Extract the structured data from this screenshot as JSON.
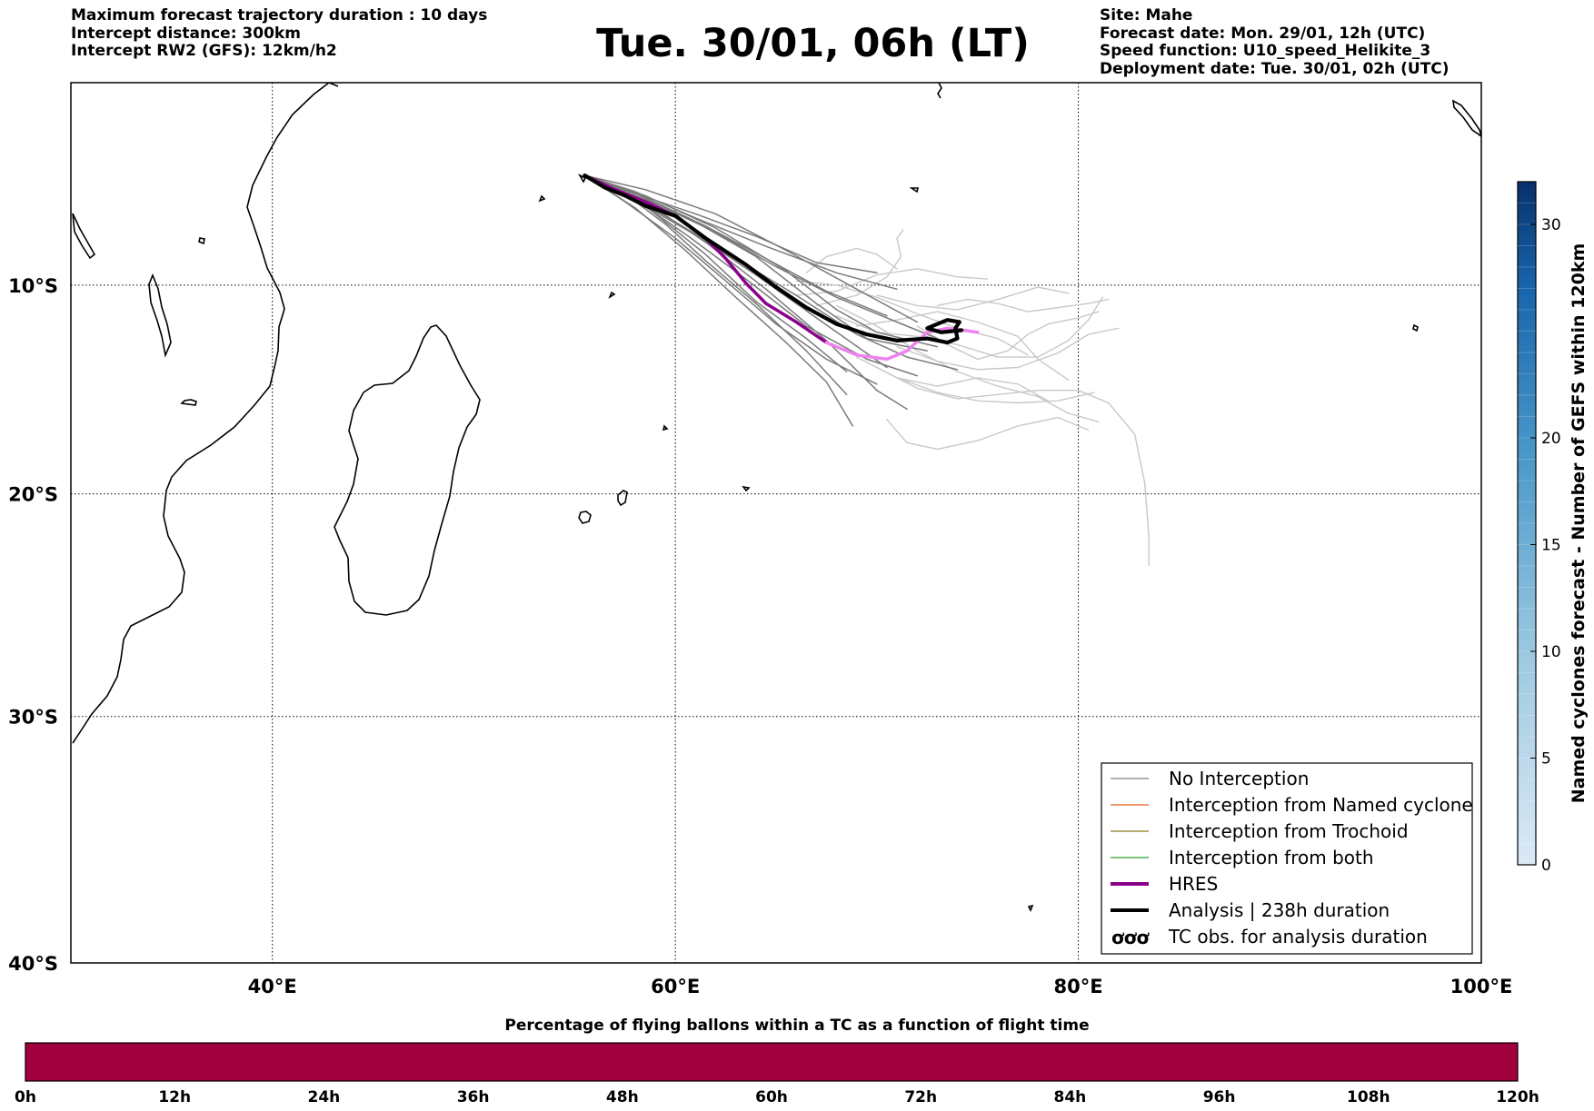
{
  "header": {
    "left": [
      "Maximum forecast trajectory duration : 10 days",
      "Intercept distance: 300km",
      "Intercept RW2 (GFS):  12km/h2"
    ],
    "title": "Tue. 30/01, 06h (LT)",
    "right": [
      "Site: Mahe",
      "Forecast date: Mon. 29/01, 12h (UTC)",
      "Speed function: U10_speed_Helikite_3",
      "Deployment date: Tue. 30/01, 02h (UTC)"
    ]
  },
  "map": {
    "lon_range": [
      30,
      100
    ],
    "lat_range": [
      -40,
      0
    ],
    "lon_ticks": [
      {
        "value": 40,
        "label": "40°E"
      },
      {
        "value": 60,
        "label": "60°E"
      },
      {
        "value": 80,
        "label": "80°E"
      },
      {
        "value": 100,
        "label": "100°E"
      }
    ],
    "lat_ticks": [
      {
        "value": -10,
        "label": "10°S"
      },
      {
        "value": -20,
        "label": "20°S"
      },
      {
        "value": -30,
        "label": "30°S"
      },
      {
        "value": -40,
        "label": "40°S"
      }
    ],
    "grid": "dotted",
    "launch_site": "Mahe"
  },
  "legend": {
    "position": "bottom-right",
    "items": [
      {
        "label": "No Interception",
        "color": "#808080",
        "style": "thin"
      },
      {
        "label": "Interception from Named cyclone",
        "color": "#e8601c",
        "style": "thin"
      },
      {
        "label": "Interception from Trochoid",
        "color": "#8a7a1e",
        "style": "thin"
      },
      {
        "label": "Interception from both",
        "color": "#2ca02c",
        "style": "thin"
      },
      {
        "label": "HRES",
        "color": "#8b008b",
        "style": "thick"
      },
      {
        "label": "Analysis | 238h duration",
        "color": "#000000",
        "style": "thick"
      },
      {
        "label": "TC obs. for analysis duration",
        "color": "#000000",
        "style": "symbol"
      }
    ]
  },
  "right_colorbar": {
    "label": "Named cyclones forecast - Number of GEFS within 120km",
    "range": [
      0,
      32
    ],
    "ticks": [
      0,
      5,
      10,
      15,
      20,
      30
    ],
    "color_low": "#dbe9f6",
    "color_high": "#08306b"
  },
  "bottom_colorbar": {
    "title": "Percentage of flying ballons within a TC as a function of flight time",
    "color": "#a0003c",
    "ticks": [
      "0h",
      "12h",
      "24h",
      "36h",
      "48h",
      "60h",
      "72h",
      "84h",
      "96h",
      "108h",
      "120h"
    ]
  },
  "trajectories": {
    "analysis": {
      "label": "Analysis",
      "color": "#000000",
      "points": [
        [
          55.5,
          -4.6
        ],
        [
          56.5,
          -5.2
        ],
        [
          57.5,
          -5.6
        ],
        [
          58.5,
          -6.1
        ],
        [
          60,
          -6.6
        ],
        [
          61.5,
          -7.7
        ],
        [
          63.5,
          -9
        ],
        [
          65,
          -10.1
        ],
        [
          66.5,
          -11.1
        ],
        [
          68,
          -11.9
        ],
        [
          69.5,
          -12.4
        ],
        [
          71,
          -12.7
        ],
        [
          72.5,
          -12.6
        ],
        [
          73.5,
          -12.8
        ],
        [
          74,
          -12.6
        ],
        [
          73.9,
          -12.1
        ],
        [
          74.1,
          -11.8
        ],
        [
          73.5,
          -11.7
        ],
        [
          73,
          -11.9
        ],
        [
          72.5,
          -12.1
        ],
        [
          73.2,
          -12.3
        ],
        [
          74.2,
          -12.2
        ]
      ]
    },
    "hres": {
      "label": "HRES",
      "color": "#8b008b",
      "highlight": "#ee82ee",
      "points": [
        [
          55.5,
          -4.6
        ],
        [
          57,
          -5.3
        ],
        [
          58.5,
          -5.9
        ],
        [
          60,
          -6.6
        ],
        [
          61.5,
          -7.7
        ],
        [
          62.5,
          -8.7
        ],
        [
          63.5,
          -9.9
        ],
        [
          64.5,
          -10.9
        ],
        [
          66,
          -11.8
        ],
        [
          67.5,
          -12.8
        ],
        [
          69,
          -13.4
        ],
        [
          70.5,
          -13.6
        ],
        [
          71.5,
          -13.2
        ],
        [
          72.5,
          -12.3
        ],
        [
          73.5,
          -12.1
        ],
        [
          74.3,
          -12.2
        ],
        [
          75,
          -12.3
        ]
      ]
    },
    "ensemble_gefs_dark": [
      [
        [
          55.5,
          -4.6
        ],
        [
          58,
          -5.7
        ],
        [
          61,
          -7.5
        ],
        [
          64,
          -9.5
        ],
        [
          67,
          -11.6
        ],
        [
          70.5,
          -14
        ]
      ],
      [
        [
          55.5,
          -4.6
        ],
        [
          58.5,
          -5.9
        ],
        [
          61.5,
          -7.9
        ],
        [
          64.5,
          -10.2
        ],
        [
          67.5,
          -12.7
        ],
        [
          70,
          -15.1
        ],
        [
          71.5,
          -16
        ]
      ],
      [
        [
          55.5,
          -4.6
        ],
        [
          59,
          -6
        ],
        [
          62,
          -7.4
        ],
        [
          65,
          -9.1
        ],
        [
          68,
          -10.6
        ],
        [
          71,
          -11.8
        ],
        [
          73,
          -12.6
        ]
      ],
      [
        [
          55.5,
          -4.6
        ],
        [
          58.5,
          -5.3
        ],
        [
          62,
          -6.5
        ],
        [
          65.5,
          -8.3
        ],
        [
          69,
          -10.2
        ],
        [
          72,
          -11.8
        ]
      ],
      [
        [
          55.5,
          -4.6
        ],
        [
          58,
          -6.2
        ],
        [
          60.5,
          -8.3
        ],
        [
          63,
          -10.6
        ],
        [
          65.5,
          -12.8
        ],
        [
          67.5,
          -14.7
        ],
        [
          68.8,
          -16.8
        ]
      ],
      [
        [
          55.5,
          -4.6
        ],
        [
          58.5,
          -5.7
        ],
        [
          61.5,
          -7.1
        ],
        [
          64.5,
          -8.7
        ],
        [
          67.5,
          -10.3
        ],
        [
          70.5,
          -11.5
        ]
      ],
      [
        [
          55.5,
          -4.6
        ],
        [
          58,
          -5.8
        ],
        [
          60.5,
          -7.5
        ],
        [
          63.5,
          -9.7
        ],
        [
          66.5,
          -12
        ],
        [
          69.5,
          -13.6
        ],
        [
          72,
          -14.4
        ]
      ],
      [
        [
          55.5,
          -4.6
        ],
        [
          58,
          -5.5
        ],
        [
          61,
          -6.9
        ],
        [
          64,
          -8.6
        ],
        [
          67,
          -10.9
        ],
        [
          69.5,
          -12.6
        ],
        [
          72.5,
          -13.2
        ]
      ],
      [
        [
          55.5,
          -4.6
        ],
        [
          57.5,
          -5.9
        ],
        [
          60,
          -7.7
        ],
        [
          62.5,
          -9.8
        ],
        [
          65,
          -11.9
        ],
        [
          67.5,
          -13.6
        ],
        [
          70,
          -14.8
        ]
      ],
      [
        [
          55.5,
          -4.6
        ],
        [
          58.5,
          -5.6
        ],
        [
          62,
          -7.2
        ],
        [
          65.5,
          -9.3
        ],
        [
          68,
          -11.2
        ],
        [
          70,
          -12.3
        ],
        [
          73,
          -13
        ]
      ],
      [
        [
          55.5,
          -4.6
        ],
        [
          57.5,
          -5.5
        ],
        [
          59.5,
          -7
        ],
        [
          61.5,
          -8.8
        ],
        [
          64,
          -10.9
        ],
        [
          66.5,
          -13.2
        ],
        [
          68.5,
          -15.3
        ]
      ],
      [
        [
          55.5,
          -4.6
        ],
        [
          59,
          -6.4
        ],
        [
          62.5,
          -8.4
        ],
        [
          66,
          -10.5
        ],
        [
          69,
          -12.4
        ],
        [
          71.5,
          -13.5
        ],
        [
          74,
          -14.1
        ]
      ],
      [
        [
          55.5,
          -4.6
        ],
        [
          58,
          -5.5
        ],
        [
          61,
          -6.5
        ],
        [
          64,
          -7.6
        ],
        [
          67,
          -8.9
        ],
        [
          70,
          -9.4
        ]
      ],
      [
        [
          55.5,
          -4.6
        ],
        [
          58.5,
          -6.1
        ],
        [
          61.5,
          -8.5
        ],
        [
          64,
          -10.8
        ],
        [
          66.5,
          -12.6
        ],
        [
          68.5,
          -14.2
        ]
      ],
      [
        [
          55.5,
          -4.6
        ],
        [
          58,
          -5.4
        ],
        [
          61,
          -6.7
        ],
        [
          64.5,
          -8.1
        ],
        [
          68,
          -9.4
        ],
        [
          71,
          -10.2
        ]
      ]
    ],
    "ensemble_gefs_light": [
      [
        [
          66,
          -9.8
        ],
        [
          68,
          -10
        ],
        [
          70,
          -10.6
        ],
        [
          72,
          -11.4
        ],
        [
          74,
          -12.1
        ],
        [
          76,
          -12.6
        ],
        [
          77.5,
          -13.4
        ]
      ],
      [
        [
          68,
          -11
        ],
        [
          70,
          -12
        ],
        [
          72,
          -13.2
        ],
        [
          74,
          -14.2
        ],
        [
          76,
          -14.9
        ],
        [
          78,
          -15.4
        ],
        [
          79.5,
          -16.2
        ],
        [
          81,
          -16.6
        ]
      ],
      [
        [
          70,
          -10.5
        ],
        [
          72,
          -11
        ],
        [
          74,
          -11.2
        ],
        [
          76,
          -10.7
        ],
        [
          78,
          -10.1
        ],
        [
          79.5,
          -10.4
        ]
      ],
      [
        [
          70,
          -14
        ],
        [
          72,
          -15
        ],
        [
          74,
          -15.5
        ],
        [
          76,
          -15.3
        ],
        [
          78,
          -15.1
        ],
        [
          80,
          -15.1
        ],
        [
          81.5,
          -15.7
        ],
        [
          82.8,
          -17.2
        ],
        [
          83.3,
          -19.5
        ],
        [
          83.5,
          -22
        ],
        [
          83.5,
          -23.3
        ]
      ],
      [
        [
          71,
          -13
        ],
        [
          73,
          -13.7
        ],
        [
          75,
          -14.1
        ],
        [
          77,
          -14
        ],
        [
          79,
          -13.3
        ],
        [
          80.5,
          -12.4
        ],
        [
          81.5,
          -12.2
        ],
        [
          82,
          -12.1
        ]
      ],
      [
        [
          69,
          -13.5
        ],
        [
          71,
          -14.5
        ],
        [
          73,
          -15.2
        ],
        [
          75,
          -15.6
        ],
        [
          77,
          -15.7
        ],
        [
          79,
          -15.6
        ],
        [
          80.8,
          -15.2
        ]
      ],
      [
        [
          66,
          -10.5
        ],
        [
          68,
          -10.3
        ],
        [
          70,
          -9.5
        ],
        [
          72,
          -9.2
        ],
        [
          74,
          -9.6
        ],
        [
          75.5,
          -9.7
        ]
      ],
      [
        [
          70.5,
          -16.5
        ],
        [
          71.5,
          -17.6
        ],
        [
          73,
          -17.9
        ],
        [
          75,
          -17.5
        ],
        [
          77,
          -16.8
        ],
        [
          79,
          -16.4
        ],
        [
          80.5,
          -17
        ]
      ],
      [
        [
          68,
          -11.5
        ],
        [
          70,
          -12.3
        ],
        [
          72,
          -12.5
        ],
        [
          74,
          -12.9
        ],
        [
          76,
          -13.5
        ],
        [
          78,
          -13.5
        ],
        [
          79.5,
          -12.7
        ],
        [
          80.5,
          -11.7
        ],
        [
          81.2,
          -10.6
        ]
      ],
      [
        [
          67,
          -11
        ],
        [
          69,
          -10.5
        ],
        [
          70.5,
          -9.6
        ],
        [
          71.2,
          -8.6
        ],
        [
          71,
          -7.7
        ],
        [
          71.3,
          -7.3
        ]
      ],
      [
        [
          72,
          -12
        ],
        [
          73.5,
          -12.9
        ],
        [
          75,
          -13.6
        ],
        [
          76.5,
          -13.2
        ],
        [
          77.5,
          -12.4
        ],
        [
          78.5,
          -11.9
        ],
        [
          80,
          -11.6
        ],
        [
          81,
          -11.3
        ]
      ],
      [
        [
          69,
          -12
        ],
        [
          71,
          -11.7
        ],
        [
          73,
          -11.3
        ],
        [
          75,
          -11.8
        ],
        [
          77,
          -12.5
        ],
        [
          78,
          -13.6
        ],
        [
          79.5,
          -14.6
        ]
      ],
      [
        [
          71,
          -14.5
        ],
        [
          73,
          -14.9
        ],
        [
          75,
          -14.5
        ],
        [
          77,
          -14.8
        ],
        [
          78.5,
          -15.6
        ]
      ],
      [
        [
          66.5,
          -9.4
        ],
        [
          67.5,
          -8.6
        ],
        [
          69,
          -8.2
        ],
        [
          70,
          -8.5
        ],
        [
          71,
          -9.2
        ]
      ],
      [
        [
          73,
          -11
        ],
        [
          74.5,
          -10.7
        ],
        [
          76,
          -10.9
        ],
        [
          77.5,
          -11.3
        ],
        [
          79,
          -11.1
        ],
        [
          80.5,
          -10.9
        ],
        [
          81.5,
          -10.7
        ]
      ]
    ]
  }
}
